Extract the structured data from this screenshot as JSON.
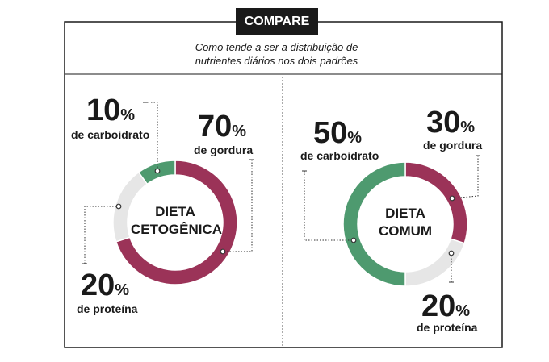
{
  "header": {
    "badge": "COMPARE",
    "subtitle": "Como tende a ser a distribuição de nutrientes diários nos dois padrões"
  },
  "chart_data": [
    {
      "type": "pie",
      "title": "DIETA CETOGÊNICA",
      "categories": [
        "de gordura",
        "de proteína",
        "de carboidrato"
      ],
      "values": [
        70,
        20,
        10
      ],
      "value_labels": [
        "70%",
        "20%",
        "10%"
      ],
      "colors": [
        "#9b3358",
        "#e6e6e6",
        "#4e9a6f"
      ]
    },
    {
      "type": "pie",
      "title": "DIETA COMUM",
      "categories": [
        "de gordura",
        "de proteína",
        "de carboidrato"
      ],
      "values": [
        30,
        20,
        50
      ],
      "value_labels": [
        "30%",
        "20%",
        "50%"
      ],
      "colors": [
        "#9b3358",
        "#e6e6e6",
        "#4e9a6f"
      ]
    }
  ]
}
